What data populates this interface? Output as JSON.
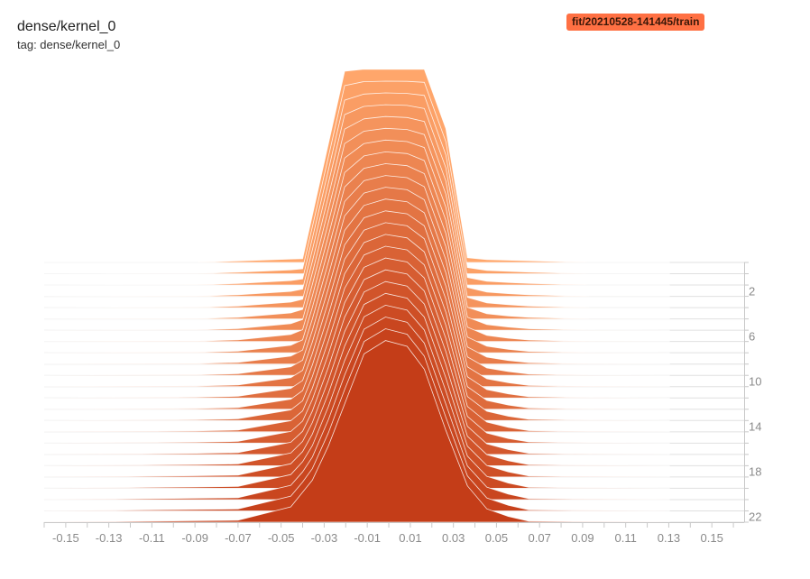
{
  "header": {
    "title": "dense/kernel_0",
    "tag": "tag: dense/kernel_0"
  },
  "run": {
    "label": "fit/20210528-141445/train",
    "color": "#ff7043"
  },
  "colors": {
    "front": "#c43d18",
    "back": "#ffa66b",
    "outline": "#ffffff",
    "baseline": "#e0e0e0",
    "axis": "#c8c8c8"
  },
  "chart_data": {
    "type": "histogram-offset",
    "title": "dense/kernel_0",
    "xlabel": "",
    "ylabel": "",
    "xlim": [
      -0.16,
      0.165
    ],
    "x_ticks": [
      "-0.15",
      "-0.13",
      "-0.11",
      "-0.09",
      "-0.07",
      "-0.05",
      "-0.03",
      "-0.01",
      "0.01",
      "0.03",
      "0.05",
      "0.07",
      "0.09",
      "0.11",
      "0.13",
      "0.15"
    ],
    "x_tick_values": [
      -0.15,
      -0.13,
      -0.11,
      -0.09,
      -0.07,
      -0.05,
      -0.03,
      -0.01,
      0.01,
      0.03,
      0.05,
      0.07,
      0.09,
      0.11,
      0.13,
      0.15
    ],
    "step_ticks": [
      "2",
      "6",
      "10",
      "14",
      "18",
      "22"
    ],
    "step_tick_values": [
      2,
      6,
      10,
      14,
      18,
      22
    ],
    "steps": 24,
    "back_series": {
      "step": 0,
      "x": [
        -0.0895,
        -0.04,
        -0.0205,
        -0.012,
        0.0165,
        0.0265,
        0.0365,
        0.0455,
        0.093
      ],
      "density": [
        0,
        0.02,
        1.0,
        1.01,
        1.01,
        0.7,
        0.025,
        0.015,
        0
      ]
    },
    "front_series": {
      "step": 23,
      "x": [
        -0.161,
        -0.07,
        -0.0455,
        -0.0355,
        -0.028,
        -0.0115,
        -0.0015,
        0.0085,
        0.0165,
        0.0265,
        0.0365,
        0.0455,
        0.0555,
        0.065,
        0.1305
      ],
      "density": [
        0,
        0.01,
        0.08,
        0.22,
        0.4,
        0.88,
        0.95,
        0.92,
        0.8,
        0.48,
        0.19,
        0.07,
        0.03,
        0.005,
        0
      ]
    }
  }
}
